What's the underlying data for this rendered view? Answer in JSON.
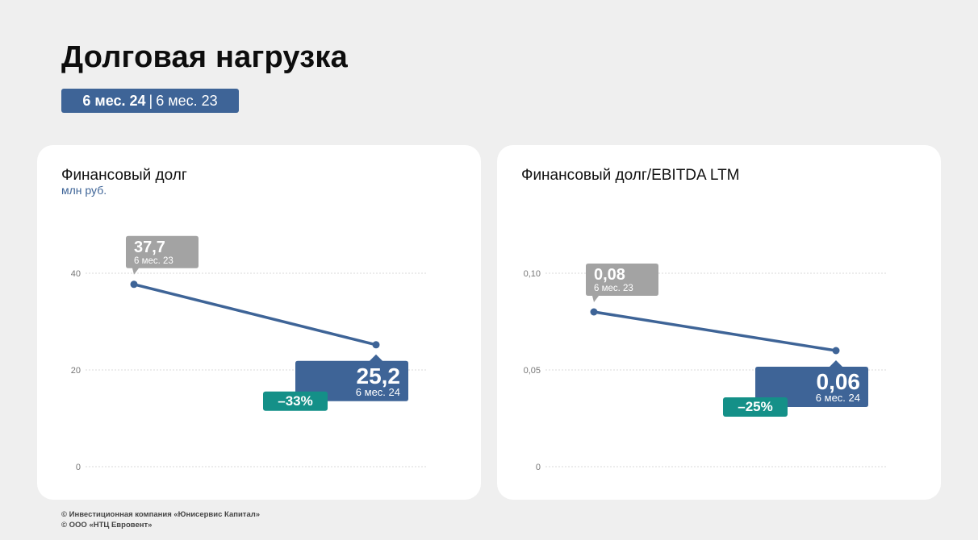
{
  "page": {
    "title": "Долговая нагрузка",
    "period_current": "6 мес. 24",
    "period_separator": "|",
    "period_previous": "6 мес. 23"
  },
  "colors": {
    "line": "#3e6497",
    "prev_label": "#a3a3a3",
    "cur_label": "#3e6497",
    "change_badge": "#149088",
    "grid": "#d9d9d9"
  },
  "chart_data": [
    {
      "type": "line",
      "title": "Финансовый долг",
      "subtitle": "млн руб.",
      "x": [
        "6 мес. 23",
        "6 мес. 24"
      ],
      "values": [
        37.7,
        25.2
      ],
      "labels": [
        "37,7",
        "25,2"
      ],
      "period_labels": [
        "6 мес. 23",
        "6 мес. 24"
      ],
      "change": "–33%",
      "ylim": [
        0,
        40
      ],
      "yticks": [
        "0",
        "20",
        "40"
      ],
      "ytick_values": [
        0,
        20,
        40
      ],
      "grid": true
    },
    {
      "type": "line",
      "title": "Финансовый долг/EBITDA LTM",
      "subtitle": "",
      "x": [
        "6 мес. 23",
        "6 мес. 24"
      ],
      "values": [
        0.08,
        0.06
      ],
      "labels": [
        "0,08",
        "0,06"
      ],
      "period_labels": [
        "6 мес. 23",
        "6 мес. 24"
      ],
      "change": "–25%",
      "ylim": [
        0,
        0.1
      ],
      "yticks": [
        "0",
        "0,05",
        "0,10"
      ],
      "ytick_values": [
        0,
        0.05,
        0.1
      ],
      "grid": true
    }
  ],
  "footer": {
    "line1": "© Инвестиционная компания «Юнисервис Капитал»",
    "line2": "© ООО «НТЦ Евровент»"
  }
}
